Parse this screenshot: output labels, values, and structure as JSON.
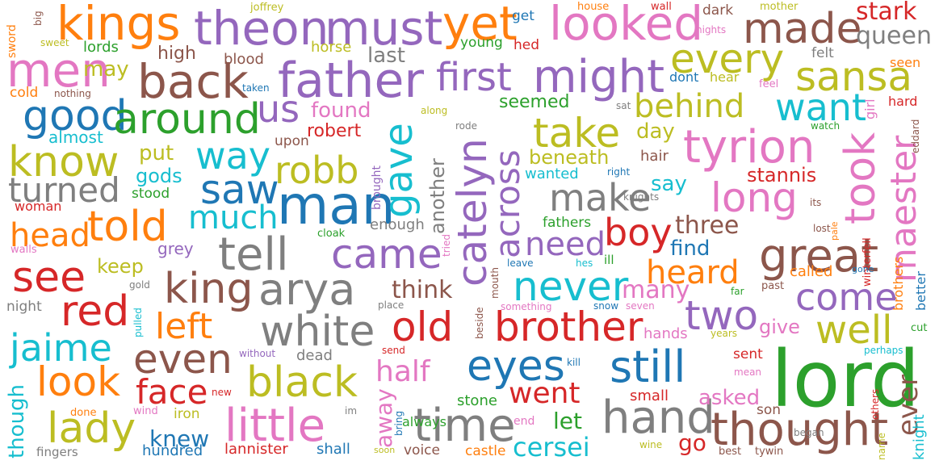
{
  "words": [
    {
      "text": "lord",
      "color": "#2ca02c"
    },
    {
      "text": "man",
      "color": "#1f77b4"
    },
    {
      "text": "father",
      "color": "#9467bd"
    },
    {
      "text": "theon",
      "color": "#9467bd"
    },
    {
      "text": "must",
      "color": "#9467bd"
    },
    {
      "text": "kings",
      "color": "#ff7f0e"
    },
    {
      "text": "yet",
      "color": "#ff7f0e"
    },
    {
      "text": "looked",
      "color": "#e377c2"
    },
    {
      "text": "made",
      "color": "#8c564b"
    },
    {
      "text": "stark",
      "color": "#d62728"
    },
    {
      "text": "queen",
      "color": "#7f7f7f"
    },
    {
      "text": "men",
      "color": "#e377c2"
    },
    {
      "text": "back",
      "color": "#8c564b"
    },
    {
      "text": "good",
      "color": "#1f77b4"
    },
    {
      "text": "around",
      "color": "#2ca02c"
    },
    {
      "text": "us",
      "color": "#9467bd"
    },
    {
      "text": "first",
      "color": "#9467bd"
    },
    {
      "text": "might",
      "color": "#9467bd"
    },
    {
      "text": "every",
      "color": "#bcbd22"
    },
    {
      "text": "sansa",
      "color": "#bcbd22"
    },
    {
      "text": "want",
      "color": "#17becf"
    },
    {
      "text": "behind",
      "color": "#bcbd22"
    },
    {
      "text": "take",
      "color": "#bcbd22"
    },
    {
      "text": "tyrion",
      "color": "#e377c2"
    },
    {
      "text": "know",
      "color": "#bcbd22"
    },
    {
      "text": "way",
      "color": "#17becf"
    },
    {
      "text": "robb",
      "color": "#bcbd22"
    },
    {
      "text": "gave",
      "color": "#17becf"
    },
    {
      "text": "catelyn",
      "color": "#9467bd"
    },
    {
      "text": "across",
      "color": "#9467bd"
    },
    {
      "text": "took",
      "color": "#e377c2"
    },
    {
      "text": "saw",
      "color": "#1f77b4"
    },
    {
      "text": "make",
      "color": "#7f7f7f"
    },
    {
      "text": "long",
      "color": "#e377c2"
    },
    {
      "text": "maester",
      "color": "#e377c2"
    },
    {
      "text": "turned",
      "color": "#7f7f7f"
    },
    {
      "text": "told",
      "color": "#ff7f0e"
    },
    {
      "text": "much",
      "color": "#17becf"
    },
    {
      "text": "head",
      "color": "#ff7f0e"
    },
    {
      "text": "tell",
      "color": "#7f7f7f"
    },
    {
      "text": "came",
      "color": "#9467bd"
    },
    {
      "text": "need",
      "color": "#9467bd"
    },
    {
      "text": "boy",
      "color": "#d62728"
    },
    {
      "text": "great",
      "color": "#8c564b"
    },
    {
      "text": "see",
      "color": "#d62728"
    },
    {
      "text": "king",
      "color": "#8c564b"
    },
    {
      "text": "arya",
      "color": "#7f7f7f"
    },
    {
      "text": "never",
      "color": "#17becf"
    },
    {
      "text": "heard",
      "color": "#ff7f0e"
    },
    {
      "text": "come",
      "color": "#9467bd"
    },
    {
      "text": "red",
      "color": "#d62728"
    },
    {
      "text": "white",
      "color": "#7f7f7f"
    },
    {
      "text": "old",
      "color": "#d62728"
    },
    {
      "text": "brother",
      "color": "#d62728"
    },
    {
      "text": "two",
      "color": "#9467bd"
    },
    {
      "text": "well",
      "color": "#bcbd22"
    },
    {
      "text": "jaime",
      "color": "#17becf"
    },
    {
      "text": "left",
      "color": "#ff7f0e"
    },
    {
      "text": "even",
      "color": "#8c564b"
    },
    {
      "text": "eyes",
      "color": "#1f77b4"
    },
    {
      "text": "still",
      "color": "#1f77b4"
    },
    {
      "text": "look",
      "color": "#ff7f0e"
    },
    {
      "text": "black",
      "color": "#bcbd22"
    },
    {
      "text": "half",
      "color": "#e377c2"
    },
    {
      "text": "went",
      "color": "#d62728"
    },
    {
      "text": "face",
      "color": "#d62728"
    },
    {
      "text": "lady",
      "color": "#bcbd22"
    },
    {
      "text": "little",
      "color": "#e377c2"
    },
    {
      "text": "time",
      "color": "#7f7f7f"
    },
    {
      "text": "hand",
      "color": "#7f7f7f"
    },
    {
      "text": "thought",
      "color": "#8c564b"
    },
    {
      "text": "ever",
      "color": "#8c564b"
    },
    {
      "text": "cersei",
      "color": "#17becf"
    },
    {
      "text": "let",
      "color": "#2ca02c"
    },
    {
      "text": "knew",
      "color": "#1f77b4"
    },
    {
      "text": "go",
      "color": "#d62728"
    },
    {
      "text": "asked",
      "color": "#e377c2"
    },
    {
      "text": "though",
      "color": "#17becf"
    },
    {
      "text": "away",
      "color": "#e377c2"
    },
    {
      "text": "lannister",
      "color": "#d62728"
    },
    {
      "text": "shall",
      "color": "#1f77b4"
    },
    {
      "text": "hundred",
      "color": "#1f77b4"
    },
    {
      "text": "voice",
      "color": "#8c564b"
    },
    {
      "text": "castle",
      "color": "#ff7f0e"
    },
    {
      "text": "high",
      "color": "#8c564b"
    },
    {
      "text": "blood",
      "color": "#8c564b"
    },
    {
      "text": "may",
      "color": "#bcbd22"
    },
    {
      "text": "lords",
      "color": "#2ca02c"
    },
    {
      "text": "last",
      "color": "#7f7f7f"
    },
    {
      "text": "horse",
      "color": "#bcbd22"
    },
    {
      "text": "found",
      "color": "#e377c2"
    },
    {
      "text": "robert",
      "color": "#d62728"
    },
    {
      "text": "seemed",
      "color": "#2ca02c"
    },
    {
      "text": "day",
      "color": "#bcbd22"
    },
    {
      "text": "beneath",
      "color": "#bcbd22"
    },
    {
      "text": "put",
      "color": "#bcbd22"
    },
    {
      "text": "gods",
      "color": "#17becf"
    },
    {
      "text": "stannis",
      "color": "#d62728"
    },
    {
      "text": "say",
      "color": "#17becf"
    },
    {
      "text": "three",
      "color": "#8c564b"
    },
    {
      "text": "find",
      "color": "#1f77b4"
    },
    {
      "text": "keep",
      "color": "#bcbd22"
    },
    {
      "text": "think",
      "color": "#8c564b"
    },
    {
      "text": "many",
      "color": "#e377c2"
    },
    {
      "text": "give",
      "color": "#e377c2"
    },
    {
      "text": "almost",
      "color": "#17becf"
    },
    {
      "text": "stood",
      "color": "#2ca02c"
    },
    {
      "text": "another",
      "color": "#7f7f7f"
    },
    {
      "text": "enough",
      "color": "#7f7f7f"
    },
    {
      "text": "fathers",
      "color": "#2ca02c"
    },
    {
      "text": "hair",
      "color": "#8c564b"
    },
    {
      "text": "wanted",
      "color": "#17becf"
    },
    {
      "text": "grey",
      "color": "#9467bd"
    },
    {
      "text": "dead",
      "color": "#7f7f7f"
    },
    {
      "text": "sent",
      "color": "#d62728"
    },
    {
      "text": "son",
      "color": "#8c564b"
    },
    {
      "text": "stone",
      "color": "#2ca02c"
    },
    {
      "text": "small",
      "color": "#d62728"
    },
    {
      "text": "called",
      "color": "#ff7f0e"
    },
    {
      "text": "hands",
      "color": "#e377c2"
    },
    {
      "text": "iron",
      "color": "#bcbd22"
    },
    {
      "text": "night",
      "color": "#7f7f7f"
    },
    {
      "text": "woman",
      "color": "#d62728"
    },
    {
      "text": "walls",
      "color": "#e377c2"
    },
    {
      "text": "cold",
      "color": "#ff7f0e"
    },
    {
      "text": "upon",
      "color": "#8c564b"
    },
    {
      "text": "always",
      "color": "#2ca02c"
    },
    {
      "text": "young",
      "color": "#2ca02c"
    },
    {
      "text": "get",
      "color": "#1f77b4"
    },
    {
      "text": "hed",
      "color": "#d62728"
    },
    {
      "text": "dark",
      "color": "#8c564b"
    },
    {
      "text": "felt",
      "color": "#7f7f7f"
    },
    {
      "text": "hear",
      "color": "#bcbd22"
    },
    {
      "text": "dont",
      "color": "#1f77b4"
    },
    {
      "text": "hard",
      "color": "#d62728"
    },
    {
      "text": "girl",
      "color": "#e377c2"
    },
    {
      "text": "seen",
      "color": "#ff7f0e"
    },
    {
      "text": "brothers",
      "color": "#ff7f0e"
    },
    {
      "text": "better",
      "color": "#1f77b4"
    },
    {
      "text": "winterfell",
      "color": "#d62728"
    },
    {
      "text": "knight",
      "color": "#17becf"
    },
    {
      "text": "fingers",
      "color": "#7f7f7f"
    },
    {
      "text": "done",
      "color": "#ff7f0e"
    },
    {
      "text": "wind",
      "color": "#e377c2"
    },
    {
      "text": "cloak",
      "color": "#2ca02c"
    },
    {
      "text": "gold",
      "color": "#7f7f7f"
    },
    {
      "text": "sword",
      "color": "#ff7f0e"
    },
    {
      "text": "big",
      "color": "#8c564b"
    },
    {
      "text": "joffrey",
      "color": "#bcbd22"
    },
    {
      "text": "sweet",
      "color": "#bcbd22"
    },
    {
      "text": "nothing",
      "color": "#8c564b"
    },
    {
      "text": "house",
      "color": "#ff7f0e"
    },
    {
      "text": "wall",
      "color": "#d62728"
    },
    {
      "text": "mother",
      "color": "#bcbd22"
    },
    {
      "text": "nights",
      "color": "#e377c2"
    },
    {
      "text": "taken",
      "color": "#1f77b4"
    },
    {
      "text": "feel",
      "color": "#e377c2"
    },
    {
      "text": "along",
      "color": "#bcbd22"
    },
    {
      "text": "sat",
      "color": "#7f7f7f"
    },
    {
      "text": "rode",
      "color": "#7f7f7f"
    },
    {
      "text": "watch",
      "color": "#2ca02c"
    },
    {
      "text": "eddard",
      "color": "#8c564b"
    },
    {
      "text": "brought",
      "color": "#9467bd"
    },
    {
      "text": "right",
      "color": "#1f77b4"
    },
    {
      "text": "knights",
      "color": "#7f7f7f"
    },
    {
      "text": "its",
      "color": "#8c564b"
    },
    {
      "text": "lost",
      "color": "#8c564b"
    },
    {
      "text": "pale",
      "color": "#ff7f0e"
    },
    {
      "text": "tried",
      "color": "#e377c2"
    },
    {
      "text": "leave",
      "color": "#1f77b4"
    },
    {
      "text": "hes",
      "color": "#17becf"
    },
    {
      "text": "ill",
      "color": "#2ca02c"
    },
    {
      "text": "gone",
      "color": "#1f77b4"
    },
    {
      "text": "far",
      "color": "#2ca02c"
    },
    {
      "text": "past",
      "color": "#8c564b"
    },
    {
      "text": "mouth",
      "color": "#8c564b"
    },
    {
      "text": "place",
      "color": "#7f7f7f"
    },
    {
      "text": "something",
      "color": "#e377c2"
    },
    {
      "text": "snow",
      "color": "#1f77b4"
    },
    {
      "text": "seven",
      "color": "#e377c2"
    },
    {
      "text": "beside",
      "color": "#8c564b"
    },
    {
      "text": "pulled",
      "color": "#17becf"
    },
    {
      "text": "years",
      "color": "#bcbd22"
    },
    {
      "text": "cut",
      "color": "#2ca02c"
    },
    {
      "text": "perhaps",
      "color": "#17becf"
    },
    {
      "text": "without",
      "color": "#9467bd"
    },
    {
      "text": "send",
      "color": "#d62728"
    },
    {
      "text": "kill",
      "color": "#1f77b4"
    },
    {
      "text": "mean",
      "color": "#e377c2"
    },
    {
      "text": "new",
      "color": "#d62728"
    },
    {
      "text": "im",
      "color": "#7f7f7f"
    },
    {
      "text": "bring",
      "color": "#1f77b4"
    },
    {
      "text": "end",
      "color": "#e377c2"
    },
    {
      "text": "began",
      "color": "#7f7f7f"
    },
    {
      "text": "others",
      "color": "#d62728"
    },
    {
      "text": "name",
      "color": "#bcbd22"
    },
    {
      "text": "soon",
      "color": "#bcbd22"
    },
    {
      "text": "wine",
      "color": "#bcbd22"
    },
    {
      "text": "best",
      "color": "#8c564b"
    },
    {
      "text": "tywin",
      "color": "#8c564b"
    }
  ]
}
